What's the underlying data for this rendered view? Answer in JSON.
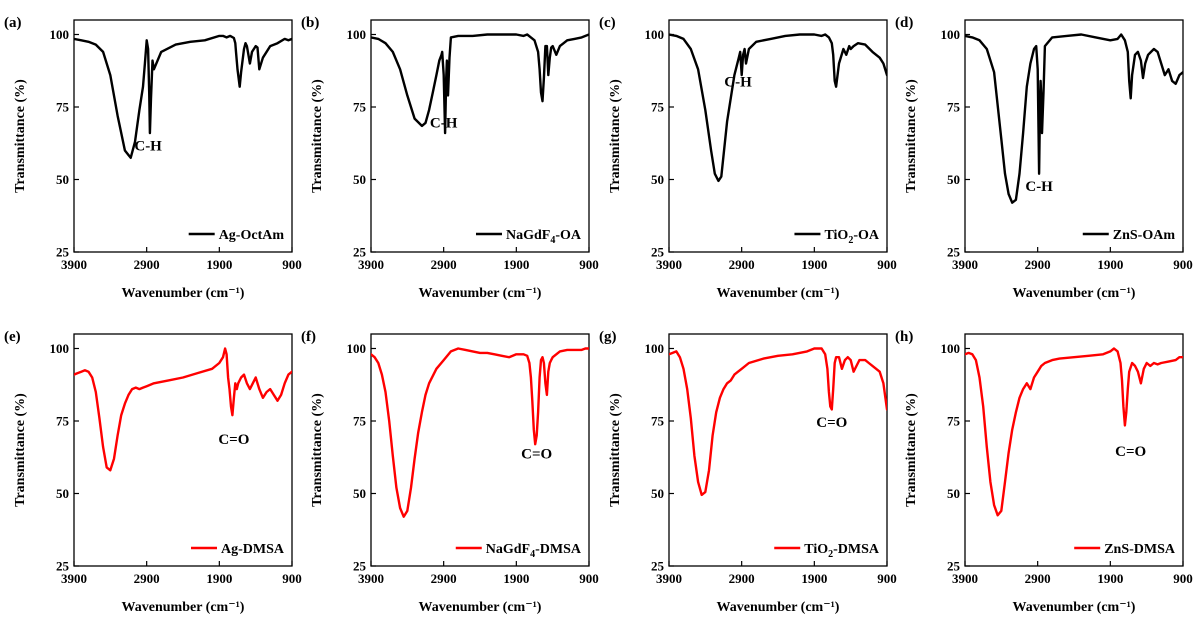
{
  "chart_data": [
    {
      "panel": "(a)",
      "type": "line",
      "xlabel": "Wavenumber",
      "xlabel_unit": "(cm⁻¹)",
      "ylabel": "Transmittance (%)",
      "xlim": [
        3900,
        900
      ],
      "ylim": [
        25,
        105
      ],
      "xticks": [
        3900,
        2900,
        1900,
        900
      ],
      "yticks": [
        25,
        50,
        75,
        100
      ],
      "legend_position": "bottom-right",
      "series": [
        {
          "name": "Ag-OctAm",
          "color": "#000000",
          "x": [
            3900,
            3800,
            3700,
            3600,
            3500,
            3400,
            3300,
            3200,
            3120,
            3060,
            3000,
            2950,
            2925,
            2900,
            2880,
            2865,
            2855,
            2840,
            2820,
            2800,
            2700,
            2500,
            2300,
            2100,
            1900,
            1850,
            1800,
            1750,
            1700,
            1680,
            1670,
            1650,
            1620,
            1600,
            1560,
            1540,
            1520,
            1480,
            1450,
            1400,
            1375,
            1350,
            1300,
            1200,
            1100,
            1000,
            950,
            900
          ],
          "y": [
            98.5,
            98,
            97.5,
            96.5,
            94,
            86,
            72,
            60,
            57.5,
            63,
            74,
            82,
            90,
            98,
            95,
            80,
            66,
            78,
            91,
            88,
            94,
            96.5,
            97.5,
            98,
            99.5,
            99.5,
            99,
            99.5,
            98.8,
            97,
            94,
            88,
            82,
            87,
            95,
            97,
            96,
            90,
            94,
            96,
            95.5,
            88,
            92,
            96,
            97,
            98.5,
            98,
            98.5
          ]
        }
      ],
      "annotations": [
        {
          "text": "C-H",
          "x": 2880,
          "y": 60
        }
      ]
    },
    {
      "panel": "(b)",
      "type": "line",
      "xlabel": "Wavenumber",
      "xlabel_unit": "(cm⁻¹)",
      "ylabel": "Transmittance (%)",
      "xlim": [
        3900,
        900
      ],
      "ylim": [
        25,
        105
      ],
      "xticks": [
        3900,
        2900,
        1900,
        900
      ],
      "yticks": [
        25,
        50,
        75,
        100
      ],
      "legend_position": "bottom-right",
      "series": [
        {
          "name": "NaGdF",
          "name_sub": "4",
          "name_suffix": "-OA",
          "color": "#000000",
          "x": [
            3900,
            3800,
            3700,
            3600,
            3500,
            3400,
            3300,
            3200,
            3150,
            3100,
            3050,
            3000,
            2960,
            2930,
            2920,
            2900,
            2880,
            2865,
            2855,
            2840,
            2820,
            2800,
            2700,
            2500,
            2300,
            2100,
            1900,
            1800,
            1750,
            1700,
            1650,
            1600,
            1580,
            1560,
            1540,
            1520,
            1500,
            1480,
            1460,
            1440,
            1420,
            1400,
            1350,
            1300,
            1250,
            1200,
            1100,
            1000,
            900
          ],
          "y": [
            99,
            98.5,
            97,
            94,
            88,
            79,
            71,
            68.5,
            69.5,
            74,
            80,
            86,
            91,
            93,
            94,
            86,
            66,
            85,
            91,
            79,
            92,
            99,
            99.5,
            99.5,
            100,
            100,
            100,
            99.5,
            100,
            99,
            98,
            94,
            88,
            80,
            77,
            85,
            96,
            96,
            86,
            92,
            95.5,
            96,
            93,
            96,
            97,
            98,
            98.5,
            99,
            100
          ]
        }
      ],
      "annotations": [
        {
          "text": "C-H",
          "x": 2900,
          "y": 68
        }
      ]
    },
    {
      "panel": "(c)",
      "type": "line",
      "xlabel": "Wavenumber",
      "xlabel_unit": "(cm⁻¹)",
      "ylabel": "Transmittance (%)",
      "xlim": [
        3900,
        900
      ],
      "ylim": [
        25,
        105
      ],
      "xticks": [
        3900,
        2900,
        1900,
        900
      ],
      "yticks": [
        25,
        50,
        75,
        100
      ],
      "legend_position": "bottom-right",
      "series": [
        {
          "name": "TiO",
          "name_sub": "2",
          "name_suffix": "-OA",
          "color": "#000000",
          "x": [
            3900,
            3800,
            3700,
            3600,
            3500,
            3400,
            3320,
            3270,
            3220,
            3180,
            3100,
            3000,
            2940,
            2920,
            2900,
            2880,
            2860,
            2840,
            2800,
            2700,
            2500,
            2300,
            2100,
            1900,
            1800,
            1750,
            1700,
            1660,
            1640,
            1620,
            1600,
            1560,
            1500,
            1460,
            1420,
            1400,
            1360,
            1300,
            1200,
            1100,
            1000,
            950,
            900
          ],
          "y": [
            100,
            99.5,
            98.5,
            95,
            88,
            74,
            60,
            52,
            49.5,
            51,
            70,
            86,
            92,
            94,
            86,
            93,
            95,
            90,
            95,
            97.5,
            98.5,
            99.5,
            100,
            100,
            99.5,
            100,
            99,
            97,
            93,
            84,
            82,
            90,
            95,
            93,
            96,
            95,
            96,
            97,
            96.5,
            94,
            92,
            90,
            86
          ]
        }
      ],
      "annotations": [
        {
          "text": "C-H",
          "x": 2950,
          "y": 82
        }
      ]
    },
    {
      "panel": "(d)",
      "type": "line",
      "xlabel": "Wavenumber",
      "xlabel_unit": "(cm⁻¹)",
      "ylabel": "Transmittance (%)",
      "xlim": [
        3900,
        900
      ],
      "ylim": [
        25,
        105
      ],
      "xticks": [
        3900,
        2900,
        1900,
        900
      ],
      "yticks": [
        25,
        50,
        75,
        100
      ],
      "legend_position": "bottom-right",
      "series": [
        {
          "name": "ZnS-OAm",
          "color": "#000000",
          "x": [
            3900,
            3800,
            3700,
            3600,
            3500,
            3400,
            3350,
            3300,
            3250,
            3200,
            3150,
            3100,
            3050,
            3000,
            2950,
            2920,
            2900,
            2880,
            2870,
            2860,
            2850,
            2840,
            2820,
            2800,
            2700,
            2500,
            2300,
            2100,
            1900,
            1800,
            1750,
            1700,
            1660,
            1640,
            1620,
            1600,
            1560,
            1520,
            1480,
            1450,
            1420,
            1380,
            1340,
            1300,
            1250,
            1200,
            1150,
            1100,
            1050,
            1000,
            950,
            900
          ],
          "y": [
            99.5,
            99,
            98,
            95,
            87,
            64,
            52,
            45,
            42,
            43,
            52,
            66,
            82,
            90,
            95,
            96,
            88,
            52,
            70,
            84,
            78,
            66,
            80,
            96,
            99,
            99.5,
            100,
            99,
            98,
            98.5,
            100,
            98,
            94,
            84,
            78,
            86,
            93,
            94,
            91,
            85,
            90,
            93,
            94,
            95,
            94,
            90,
            86,
            88,
            84,
            83,
            86,
            87
          ]
        }
      ],
      "annotations": [
        {
          "text": "C-H",
          "x": 2880,
          "y": 46
        }
      ]
    },
    {
      "panel": "(e)",
      "type": "line",
      "xlabel": "Wavenumber",
      "xlabel_unit": "(cm⁻¹)",
      "ylabel": "Transmittance (%)",
      "xlim": [
        3900,
        900
      ],
      "ylim": [
        25,
        105
      ],
      "xticks": [
        3900,
        2900,
        1900,
        900
      ],
      "yticks": [
        25,
        50,
        75,
        100
      ],
      "legend_position": "bottom-right",
      "series": [
        {
          "name": "Ag-DMSA",
          "color": "#ff0000",
          "x": [
            3900,
            3850,
            3800,
            3750,
            3700,
            3650,
            3600,
            3550,
            3500,
            3450,
            3400,
            3350,
            3300,
            3250,
            3200,
            3150,
            3100,
            3050,
            3000,
            2950,
            2900,
            2800,
            2600,
            2400,
            2200,
            2000,
            1900,
            1850,
            1820,
            1800,
            1780,
            1760,
            1740,
            1720,
            1700,
            1680,
            1660,
            1640,
            1600,
            1560,
            1520,
            1480,
            1440,
            1400,
            1350,
            1300,
            1250,
            1200,
            1150,
            1100,
            1050,
            1000,
            950,
            900
          ],
          "y": [
            91,
            91.5,
            92,
            92.5,
            92,
            90,
            85,
            76,
            66,
            59,
            58,
            62,
            70,
            77,
            81,
            84,
            86,
            86.5,
            86,
            86.5,
            87,
            88,
            89,
            90,
            91.5,
            93,
            95,
            97,
            100,
            98,
            90,
            86,
            80,
            77,
            83,
            88,
            86,
            88,
            90,
            91,
            88,
            86,
            88,
            90,
            86,
            83,
            85,
            86,
            84,
            82,
            84,
            88,
            91,
            92
          ]
        }
      ],
      "annotations": [
        {
          "text": "C=O",
          "x": 1700,
          "y": 67
        }
      ]
    },
    {
      "panel": "(f)",
      "type": "line",
      "xlabel": "Wavenumber",
      "xlabel_unit": "(cm⁻¹)",
      "ylabel": "Transmittance (%)",
      "xlim": [
        3900,
        900
      ],
      "ylim": [
        25,
        105
      ],
      "xticks": [
        3900,
        2900,
        1900,
        900
      ],
      "yticks": [
        25,
        50,
        75,
        100
      ],
      "legend_position": "bottom-right",
      "series": [
        {
          "name": "NaGdF",
          "name_sub": "4",
          "name_suffix": "-DMSA",
          "color": "#ff0000",
          "x": [
            3900,
            3850,
            3800,
            3750,
            3700,
            3650,
            3600,
            3550,
            3500,
            3450,
            3400,
            3350,
            3300,
            3250,
            3200,
            3150,
            3100,
            3000,
            2900,
            2800,
            2700,
            2600,
            2500,
            2400,
            2300,
            2200,
            2100,
            2000,
            1900,
            1800,
            1750,
            1720,
            1700,
            1680,
            1660,
            1640,
            1620,
            1600,
            1580,
            1560,
            1540,
            1520,
            1500,
            1480,
            1460,
            1440,
            1420,
            1400,
            1350,
            1300,
            1200,
            1100,
            1000,
            950,
            900
          ],
          "y": [
            98,
            97,
            95,
            91,
            85,
            75,
            63,
            52,
            45,
            42,
            44,
            52,
            62,
            71,
            78,
            84,
            88,
            93,
            96,
            99,
            100,
            99.5,
            99,
            98.5,
            98.5,
            98,
            97.5,
            97,
            98,
            98,
            97.5,
            95,
            90,
            82,
            72,
            67,
            70,
            78,
            90,
            96,
            97,
            95,
            88,
            84,
            92,
            95,
            96,
            97,
            98,
            99,
            99.5,
            99.5,
            99.5,
            100,
            100
          ]
        }
      ],
      "annotations": [
        {
          "text": "C=O",
          "x": 1620,
          "y": 62
        }
      ]
    },
    {
      "panel": "(g)",
      "type": "line",
      "xlabel": "Wavenumber",
      "xlabel_unit": "(cm⁻¹)",
      "ylabel": "Transmittance (%)",
      "xlim": [
        3900,
        900
      ],
      "ylim": [
        25,
        105
      ],
      "xticks": [
        3900,
        2900,
        1900,
        900
      ],
      "yticks": [
        25,
        50,
        75,
        100
      ],
      "legend_position": "bottom-right",
      "series": [
        {
          "name": "TiO",
          "name_sub": "2",
          "name_suffix": "-DMSA",
          "color": "#ff0000",
          "x": [
            3900,
            3850,
            3800,
            3750,
            3700,
            3650,
            3600,
            3550,
            3500,
            3450,
            3400,
            3350,
            3300,
            3250,
            3200,
            3150,
            3100,
            3050,
            3000,
            2950,
            2900,
            2800,
            2600,
            2400,
            2200,
            2000,
            1900,
            1800,
            1750,
            1720,
            1700,
            1680,
            1660,
            1640,
            1620,
            1600,
            1560,
            1520,
            1480,
            1440,
            1400,
            1360,
            1320,
            1280,
            1250,
            1200,
            1150,
            1100,
            1050,
            1000,
            950,
            900
          ],
          "y": [
            98,
            98.5,
            99,
            97,
            93,
            86,
            76,
            63,
            54,
            49.5,
            50.5,
            58,
            70,
            78,
            83,
            86,
            88,
            89,
            91,
            92,
            93,
            95,
            96.5,
            97.5,
            98,
            99,
            100,
            100,
            98,
            93,
            85,
            80,
            79,
            86,
            95,
            97,
            97,
            93,
            96,
            97,
            96,
            92,
            94,
            96,
            96,
            96,
            95,
            94,
            93,
            92,
            88,
            79
          ]
        }
      ],
      "annotations": [
        {
          "text": "C=O",
          "x": 1660,
          "y": 73
        }
      ]
    },
    {
      "panel": "(h)",
      "type": "line",
      "xlabel": "Wavenumber",
      "xlabel_unit": "(cm⁻¹)",
      "ylabel": "Transmittance (%)",
      "xlim": [
        3900,
        900
      ],
      "ylim": [
        25,
        105
      ],
      "xticks": [
        3900,
        2900,
        1900,
        900
      ],
      "yticks": [
        25,
        50,
        75,
        100
      ],
      "legend_position": "bottom-right",
      "series": [
        {
          "name": "ZnS-DMSA",
          "color": "#ff0000",
          "x": [
            3900,
            3850,
            3800,
            3750,
            3700,
            3650,
            3600,
            3550,
            3500,
            3450,
            3400,
            3350,
            3300,
            3250,
            3200,
            3150,
            3100,
            3050,
            3000,
            2950,
            2900,
            2850,
            2800,
            2700,
            2600,
            2400,
            2200,
            2000,
            1900,
            1850,
            1800,
            1760,
            1740,
            1720,
            1700,
            1680,
            1660,
            1640,
            1600,
            1560,
            1520,
            1480,
            1440,
            1400,
            1350,
            1300,
            1250,
            1200,
            1100,
            1000,
            950,
            900
          ],
          "y": [
            98,
            98.5,
            98,
            96,
            90,
            80,
            66,
            54,
            46,
            42.5,
            44,
            54,
            64,
            72,
            78,
            83,
            86,
            88,
            86,
            90,
            92,
            94,
            95,
            96,
            96.5,
            97,
            97.5,
            98,
            99,
            100,
            99,
            95,
            89,
            80,
            73.5,
            78,
            86,
            92,
            95,
            94,
            92,
            88,
            93,
            95,
            94,
            95,
            94.5,
            95,
            95.5,
            96,
            97,
            97
          ]
        }
      ],
      "annotations": [
        {
          "text": "C=O",
          "x": 1620,
          "y": 63
        }
      ]
    }
  ]
}
